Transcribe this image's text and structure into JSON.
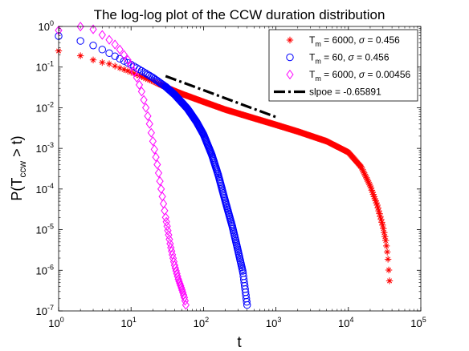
{
  "chart_data": {
    "type": "scatter",
    "title": "The log-log plot of the CCW duration distribution",
    "xlabel": "t",
    "ylabel_main": "P(T",
    "ylabel_sub": "ccw",
    "ylabel_tail": " > t)",
    "x_scale": "log",
    "y_scale": "log",
    "xlim": [
      1,
      100000
    ],
    "ylim": [
      1e-07,
      1
    ],
    "grid": false,
    "legend_position": "top-right",
    "x_ticks": [
      {
        "value": 1,
        "base": "10",
        "exp": "0"
      },
      {
        "value": 10,
        "base": "10",
        "exp": "1"
      },
      {
        "value": 100,
        "base": "10",
        "exp": "2"
      },
      {
        "value": 1000,
        "base": "10",
        "exp": "3"
      },
      {
        "value": 10000,
        "base": "10",
        "exp": "4"
      },
      {
        "value": 100000,
        "base": "10",
        "exp": "5"
      }
    ],
    "y_ticks": [
      {
        "value": 1e-07,
        "base": "10",
        "exp": "-7"
      },
      {
        "value": 1e-06,
        "base": "10",
        "exp": "-6"
      },
      {
        "value": 1e-05,
        "base": "10",
        "exp": "-5"
      },
      {
        "value": 0.0001,
        "base": "10",
        "exp": "-4"
      },
      {
        "value": 0.001,
        "base": "10",
        "exp": "-3"
      },
      {
        "value": 0.01,
        "base": "10",
        "exp": "-2"
      },
      {
        "value": 0.1,
        "base": "10",
        "exp": "-1"
      },
      {
        "value": 1,
        "base": "10",
        "exp": "0"
      }
    ],
    "series": [
      {
        "legend_parts": [
          {
            "t": "T"
          },
          {
            "t": "m",
            "sub": true
          },
          {
            "t": " = 6000, "
          },
          {
            "t": "σ",
            "italic": true
          },
          {
            "t": " = 0.456"
          }
        ],
        "marker": "asterisk",
        "color": "#ff0000",
        "x_range": [
          1,
          37000
        ],
        "points_count": 320,
        "points": [
          [
            1,
            0.25
          ],
          [
            2,
            0.19
          ],
          [
            3,
            0.15
          ],
          [
            4,
            0.13
          ],
          [
            5,
            0.12
          ],
          [
            7,
            0.095
          ],
          [
            10,
            0.075
          ],
          [
            15,
            0.055
          ],
          [
            20,
            0.045
          ],
          [
            30,
            0.032
          ],
          [
            50,
            0.022
          ],
          [
            100,
            0.014
          ],
          [
            200,
            0.009
          ],
          [
            500,
            0.0055
          ],
          [
            1000,
            0.0038
          ],
          [
            2000,
            0.0026
          ],
          [
            5000,
            0.0015
          ],
          [
            10000,
            0.0008
          ],
          [
            15000,
            0.00035
          ],
          [
            20000,
            0.00012
          ],
          [
            25000,
            4e-05
          ],
          [
            30000,
            1.2e-05
          ],
          [
            33000,
            5e-06
          ],
          [
            35000,
            2.2e-06
          ],
          [
            37000,
            5.5e-07
          ]
        ]
      },
      {
        "legend_parts": [
          {
            "t": "T"
          },
          {
            "t": "m",
            "sub": true
          },
          {
            "t": " = 60, "
          },
          {
            "t": "σ",
            "italic": true
          },
          {
            "t": " = 0.456"
          }
        ],
        "marker": "circle",
        "color": "#0000ff",
        "x_range": [
          1,
          400
        ],
        "points_count": 230,
        "points": [
          [
            1,
            0.58
          ],
          [
            2,
            0.44
          ],
          [
            3,
            0.34
          ],
          [
            4,
            0.27
          ],
          [
            5,
            0.22
          ],
          [
            7,
            0.16
          ],
          [
            10,
            0.115
          ],
          [
            15,
            0.075
          ],
          [
            20,
            0.055
          ],
          [
            30,
            0.033
          ],
          [
            40,
            0.021
          ],
          [
            60,
            0.0095
          ],
          [
            80,
            0.0045
          ],
          [
            100,
            0.0022
          ],
          [
            130,
            0.0007
          ],
          [
            160,
            0.00022
          ],
          [
            200,
            5e-05
          ],
          [
            250,
            1.2e-05
          ],
          [
            300,
            3e-06
          ],
          [
            350,
            9e-07
          ],
          [
            400,
            1.4e-07
          ]
        ]
      },
      {
        "legend_parts": [
          {
            "t": "T"
          },
          {
            "t": "m",
            "sub": true
          },
          {
            "t": " = 6000, "
          },
          {
            "t": "σ",
            "italic": true
          },
          {
            "t": " = 0.00456"
          }
        ],
        "marker": "diamond",
        "color": "#ff00ff",
        "x_range": [
          1,
          57
        ],
        "points_count": 57,
        "points": [
          [
            1,
            0.8
          ],
          [
            2,
            0.99
          ],
          [
            3,
            0.85
          ],
          [
            4,
            0.62
          ],
          [
            5,
            0.47
          ],
          [
            6,
            0.36
          ],
          [
            7,
            0.27
          ],
          [
            8,
            0.2
          ],
          [
            9,
            0.15
          ],
          [
            10,
            0.11
          ],
          [
            12,
            0.055
          ],
          [
            14,
            0.025
          ],
          [
            16,
            0.01
          ],
          [
            18,
            0.004
          ],
          [
            20,
            0.0015
          ],
          [
            23,
            0.0004
          ],
          [
            26,
            0.0001
          ],
          [
            30,
            2e-05
          ],
          [
            35,
            4e-06
          ],
          [
            40,
            1.3e-06
          ],
          [
            45,
            6e-07
          ],
          [
            50,
            3.5e-07
          ],
          [
            55,
            2e-07
          ],
          [
            57,
            1.4e-07
          ]
        ]
      }
    ],
    "reference_line": {
      "legend_parts": [
        {
          "t": "slpoe = -0.65891"
        }
      ],
      "style": "dash-dot",
      "color": "#000000",
      "slope": -0.65891,
      "x": [
        30,
        1000
      ],
      "y": [
        0.06,
        0.0059
      ]
    }
  }
}
